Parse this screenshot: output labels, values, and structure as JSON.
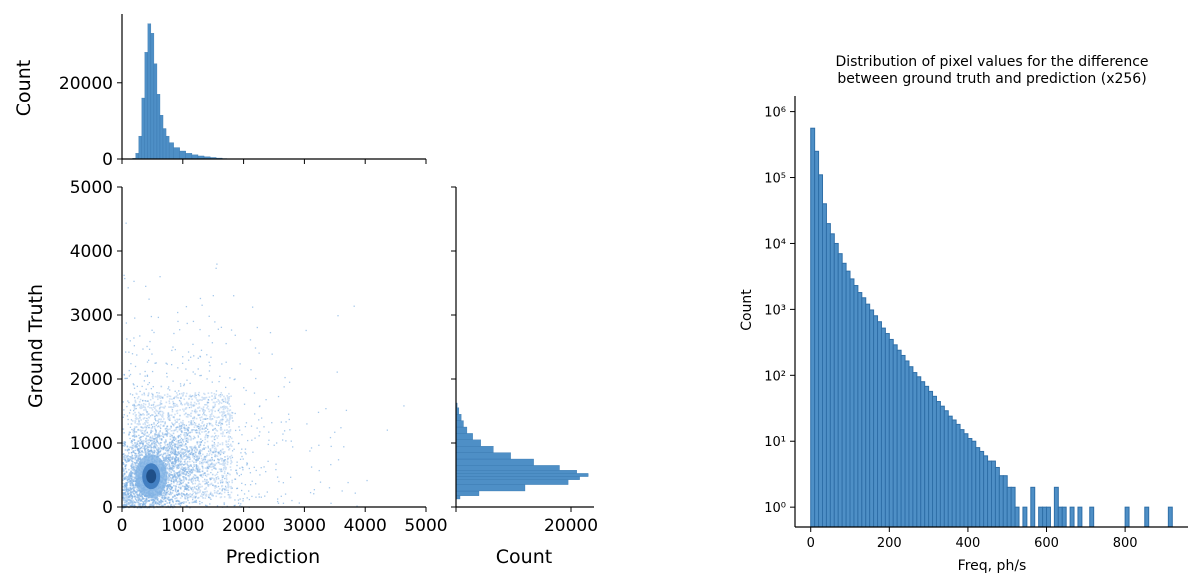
{
  "colors": {
    "bar_fill": "#4e8fc6",
    "bar_edge": "#2f6fa8",
    "density_light": "#cfe1f5",
    "density_mid": "#7fb1e3",
    "density_dark": "#1f4f88"
  },
  "chart_data": [
    {
      "type": "heatmap",
      "xlabel": "Prediction",
      "ylabel": "Ground Truth",
      "xlim": [
        0,
        5000
      ],
      "ylim": [
        0,
        5000
      ],
      "xticks": [
        "0",
        "1000",
        "2000",
        "3000",
        "4000",
        "5000"
      ],
      "yticks": [
        "0",
        "1000",
        "2000",
        "3000",
        "4000",
        "5000"
      ],
      "peak": {
        "x": 480,
        "y": 480
      },
      "bulk_region": {
        "x_range": [
          150,
          1800
        ],
        "y_range": [
          150,
          1800
        ]
      },
      "description_of_density": [
        "high",
        "medium",
        "low"
      ]
    },
    {
      "type": "bar",
      "xlabel": "",
      "ylabel": "Count",
      "xlim": [
        0,
        5000
      ],
      "ylim": [
        0,
        37000
      ],
      "yticks": [
        "0",
        "20000"
      ],
      "bin_centers": [
        200,
        250,
        300,
        350,
        400,
        450,
        500,
        550,
        600,
        650,
        700,
        750,
        800,
        900,
        1000,
        1100,
        1200,
        1300,
        1400,
        1500,
        1600,
        1700
      ],
      "counts": [
        200,
        1500,
        6000,
        16000,
        28000,
        35500,
        33000,
        25000,
        17000,
        11500,
        8000,
        6000,
        4300,
        3000,
        2100,
        1500,
        1100,
        800,
        600,
        400,
        250,
        120
      ]
    },
    {
      "type": "bar",
      "orientation": "horizontal",
      "xlabel": "Count",
      "ylabel": "",
      "xlim": [
        0,
        24000
      ],
      "xticks": [
        "20000"
      ],
      "bin_centers": [
        150,
        200,
        300,
        400,
        450,
        500,
        550,
        600,
        700,
        800,
        900,
        1000,
        1100,
        1200,
        1300,
        1400,
        1500,
        1600
      ],
      "counts": [
        700,
        4000,
        12000,
        19500,
        21500,
        23000,
        21000,
        18000,
        13500,
        9500,
        6500,
        4300,
        2900,
        1900,
        1300,
        900,
        500,
        200
      ]
    },
    {
      "type": "bar",
      "title": "Distribution of pixel values for the difference\nbetween ground truth and prediction (x256)",
      "title_lines": [
        "Distribution of pixel values for the difference",
        "between ground truth and prediction (x256)"
      ],
      "xlabel": "Freq, ph/s",
      "ylabel": "Count",
      "yscale": "log",
      "xlim": [
        -40,
        960
      ],
      "ylim": [
        0.5,
        1500000
      ],
      "xticks": [
        "0",
        "200",
        "400",
        "600",
        "800"
      ],
      "yticks": [
        {
          "value": 1,
          "label": "10⁰"
        },
        {
          "value": 10,
          "label": "10¹"
        },
        {
          "value": 100,
          "label": "10²"
        },
        {
          "value": 1000,
          "label": "10³"
        },
        {
          "value": 10000,
          "label": "10⁴"
        },
        {
          "value": 100000,
          "label": "10⁵"
        },
        {
          "value": 1000000,
          "label": "10⁶"
        }
      ],
      "bin_width": 10,
      "bin_starts": [
        0,
        10,
        20,
        30,
        40,
        50,
        60,
        70,
        80,
        90,
        100,
        110,
        120,
        130,
        140,
        150,
        160,
        170,
        180,
        190,
        200,
        210,
        220,
        230,
        240,
        250,
        260,
        270,
        280,
        290,
        300,
        310,
        320,
        330,
        340,
        350,
        360,
        370,
        380,
        390,
        400,
        410,
        420,
        430,
        440,
        450,
        460,
        470,
        480,
        490,
        500,
        510,
        520,
        530,
        540,
        550,
        560,
        570,
        580,
        590,
        600,
        610,
        620,
        630,
        640,
        650,
        660,
        670,
        680,
        690,
        700,
        710,
        720,
        730,
        740,
        750,
        760,
        770,
        780,
        790,
        800,
        810,
        820,
        830,
        840,
        850,
        860,
        870,
        880,
        890,
        900,
        910
      ],
      "counts": [
        560000,
        250000,
        110000,
        40000,
        20000,
        14000,
        10000,
        7000,
        5000,
        3800,
        2900,
        2300,
        1800,
        1500,
        1200,
        980,
        800,
        650,
        520,
        430,
        350,
        290,
        240,
        200,
        165,
        135,
        110,
        95,
        80,
        68,
        57,
        48,
        40,
        34,
        29,
        24,
        21,
        18,
        15,
        13,
        11,
        10,
        8,
        7,
        6,
        5,
        5,
        4,
        3,
        3,
        2,
        2,
        1,
        0,
        1,
        0,
        2,
        0,
        1,
        1,
        1,
        0,
        2,
        1,
        1,
        0,
        1,
        0,
        1,
        0,
        0,
        1,
        0,
        0,
        0,
        0,
        0,
        0,
        0,
        0,
        1,
        0,
        0,
        0,
        0,
        1,
        0,
        0,
        0,
        0,
        0,
        1
      ]
    }
  ]
}
